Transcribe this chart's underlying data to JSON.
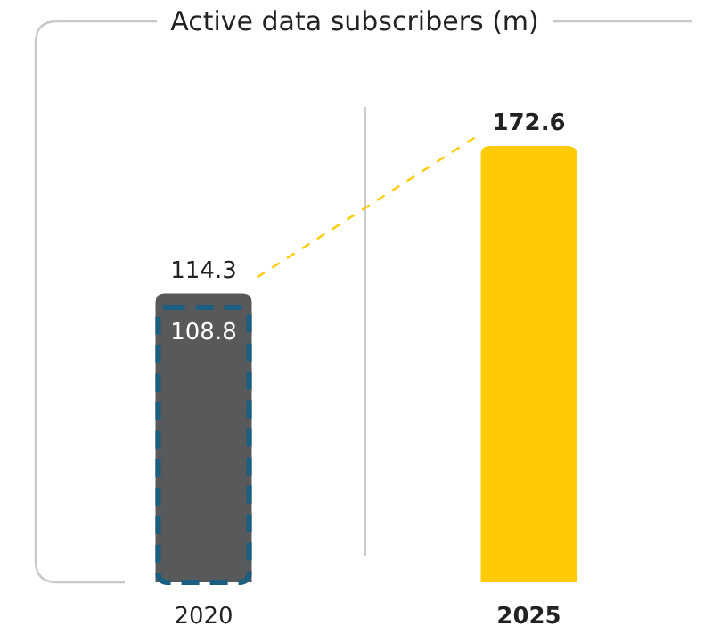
{
  "chart_data": {
    "type": "bar",
    "title": "Active data subscribers (m)",
    "categories": [
      "2020",
      "2025"
    ],
    "series": [
      {
        "values": [
          114.3,
          172.6
        ],
        "colors": [
          "#58595b",
          "#ffcb05"
        ]
      },
      {
        "values": [
          108.8,
          null
        ],
        "color": "#1a5e80",
        "line_style": "dashed"
      }
    ],
    "data_labels": true
  }
}
